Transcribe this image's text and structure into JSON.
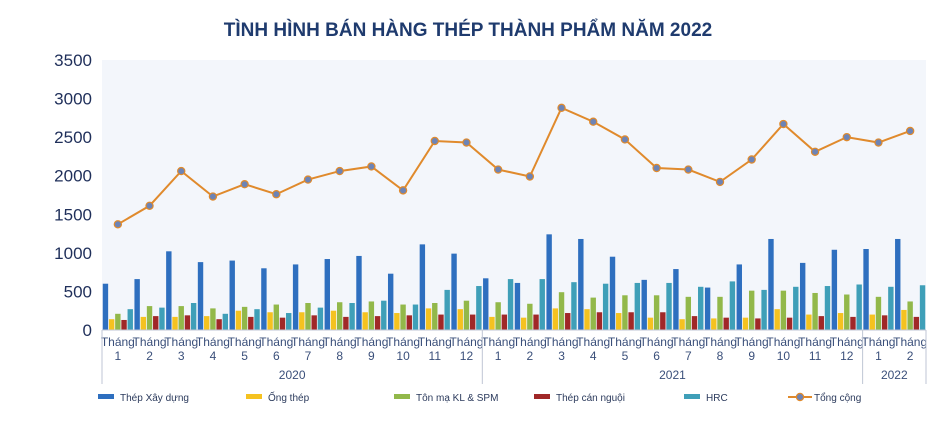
{
  "chart_data": {
    "type": "bar",
    "title": "TÌNH HÌNH BÁN HÀNG THÉP THÀNH PHẨM NĂM 2022",
    "xlabel": "",
    "ylabel": "",
    "ylim": [
      0,
      3500
    ],
    "yticks": [
      0,
      500,
      1000,
      1500,
      2000,
      2500,
      3000,
      3500
    ],
    "grid": false,
    "legend": "bottom",
    "category_prefix": "Tháng",
    "categories": [
      "1",
      "2",
      "3",
      "4",
      "5",
      "6",
      "7",
      "8",
      "9",
      "10",
      "11",
      "12",
      "1",
      "2",
      "3",
      "4",
      "5",
      "6",
      "7",
      "8",
      "9",
      "10",
      "11",
      "12",
      "1",
      "2"
    ],
    "groups": [
      {
        "label": "2020",
        "count": 12
      },
      {
        "label": "2021",
        "count": 12
      },
      {
        "label": "2022",
        "count": 2
      }
    ],
    "series": [
      {
        "name": "Thép Xây dựng",
        "kind": "bar",
        "color": "#2e6fbf",
        "values": [
          600,
          660,
          1020,
          880,
          900,
          800,
          850,
          920,
          960,
          730,
          1110,
          990,
          670,
          610,
          1240,
          1180,
          950,
          650,
          790,
          550,
          850,
          1180,
          870,
          1040,
          1050,
          1180
        ]
      },
      {
        "name": "Ống thép",
        "kind": "bar",
        "color": "#f5c220",
        "values": [
          140,
          170,
          170,
          180,
          250,
          230,
          230,
          250,
          230,
          220,
          280,
          270,
          170,
          160,
          280,
          270,
          220,
          160,
          140,
          150,
          160,
          270,
          200,
          220,
          200,
          260
        ]
      },
      {
        "name": "Tôn mạ KL & SPM",
        "kind": "bar",
        "color": "#92b84a",
        "values": [
          210,
          310,
          310,
          280,
          300,
          330,
          350,
          360,
          370,
          330,
          350,
          380,
          360,
          340,
          490,
          420,
          450,
          450,
          430,
          430,
          510,
          510,
          480,
          460,
          430,
          370
        ]
      },
      {
        "name": "Thép cán nguội",
        "kind": "bar",
        "color": "#a02828",
        "values": [
          130,
          180,
          190,
          140,
          170,
          160,
          190,
          170,
          180,
          190,
          200,
          200,
          200,
          200,
          220,
          230,
          230,
          230,
          180,
          160,
          150,
          160,
          180,
          170,
          190,
          170
        ]
      },
      {
        "name": "HRC",
        "kind": "bar",
        "color": "#3f9fb8",
        "values": [
          270,
          290,
          350,
          210,
          270,
          220,
          290,
          350,
          380,
          330,
          520,
          570,
          660,
          660,
          620,
          600,
          610,
          610,
          560,
          630,
          520,
          560,
          570,
          590,
          560,
          580
        ]
      },
      {
        "name": "Tổng cộng",
        "kind": "line",
        "color": "#e08a2c",
        "marker_color": "#6d84b6",
        "values": [
          1370,
          1610,
          2060,
          1730,
          1890,
          1760,
          1950,
          2060,
          2120,
          1810,
          2450,
          2430,
          2080,
          1990,
          2880,
          2700,
          2470,
          2100,
          2080,
          1920,
          2210,
          2670,
          2310,
          2500,
          2430,
          2580
        ]
      }
    ]
  }
}
